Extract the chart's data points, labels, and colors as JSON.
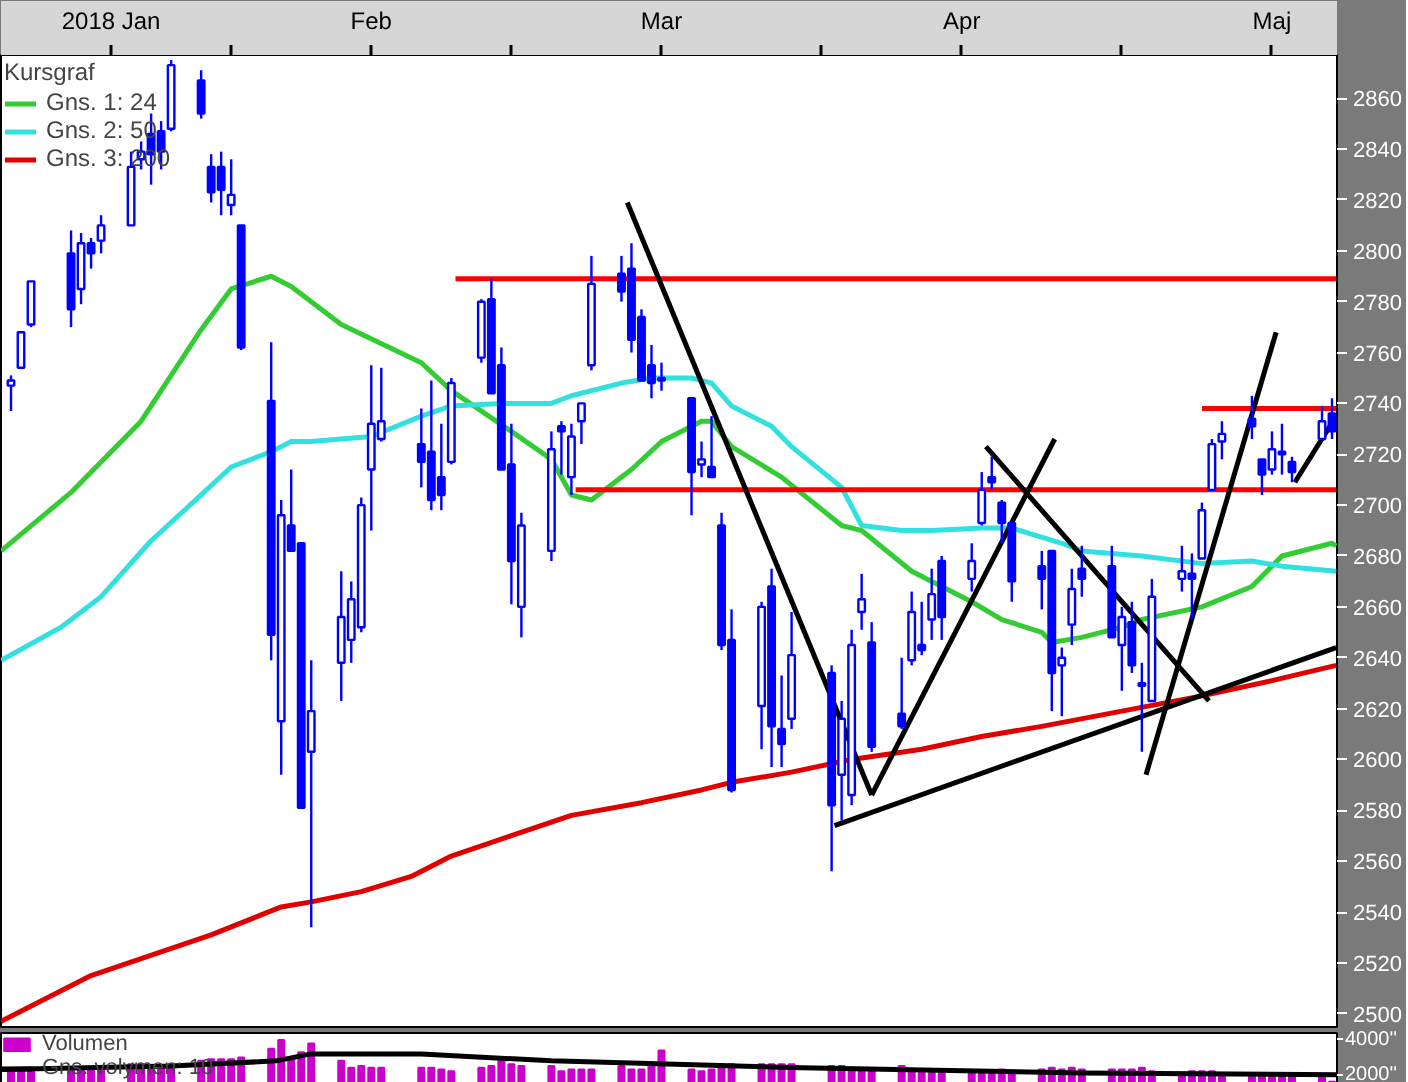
{
  "chart_data": [
    {
      "type": "candlestick",
      "color": "#0000ff",
      "legend": "top left",
      "legend_title": "Kursgraf",
      "x": [
        "2018-01-10",
        "2018-01-11",
        "2018-01-12",
        "2018-01-16",
        "2018-01-17",
        "2018-01-18",
        "2018-01-19",
        "2018-01-22",
        "2018-01-23",
        "2018-01-24",
        "2018-01-25",
        "2018-01-26",
        "2018-01-29",
        "2018-01-30",
        "2018-01-31",
        "2018-02-01",
        "2018-02-02",
        "2018-02-05",
        "2018-02-06",
        "2018-02-07",
        "2018-02-08",
        "2018-02-09",
        "2018-02-12",
        "2018-02-13",
        "2018-02-14",
        "2018-02-15",
        "2018-02-16",
        "2018-02-20",
        "2018-02-21",
        "2018-02-22",
        "2018-02-23",
        "2018-02-26",
        "2018-02-27",
        "2018-02-28",
        "2018-03-01",
        "2018-03-02",
        "2018-03-05",
        "2018-03-06",
        "2018-03-07",
        "2018-03-08",
        "2018-03-09",
        "2018-03-12",
        "2018-03-13",
        "2018-03-14",
        "2018-03-15",
        "2018-03-16",
        "2018-03-19",
        "2018-03-20",
        "2018-03-21",
        "2018-03-22",
        "2018-03-23",
        "2018-03-26",
        "2018-03-27",
        "2018-03-28",
        "2018-03-29",
        "2018-04-02",
        "2018-04-03",
        "2018-04-04",
        "2018-04-05",
        "2018-04-06",
        "2018-04-09",
        "2018-04-10",
        "2018-04-11",
        "2018-04-12",
        "2018-04-13",
        "2018-04-16",
        "2018-04-17",
        "2018-04-18",
        "2018-04-19",
        "2018-04-20",
        "2018-04-23",
        "2018-04-24",
        "2018-04-25",
        "2018-04-26",
        "2018-04-27",
        "2018-04-30",
        "2018-05-01",
        "2018-05-02",
        "2018-05-03",
        "2018-05-04",
        "2018-05-07",
        "2018-05-08",
        "2018-05-09",
        "2018-05-10",
        "2018-05-11",
        "2018-05-14",
        "2018-05-15",
        "2018-05-16",
        "2018-05-17",
        "2018-05-18",
        "2018-05-21",
        "2018-05-22"
      ],
      "ohlc": [
        [
          2747,
          2751,
          2737,
          2749
        ],
        [
          2754,
          2768,
          2754,
          2768
        ],
        [
          2771,
          2788,
          2770,
          2788
        ],
        [
          2799,
          2808,
          2770,
          2777
        ],
        [
          2785,
          2807,
          2779,
          2803
        ],
        [
          2803,
          2805,
          2793,
          2799
        ],
        [
          2804,
          2814,
          2799,
          2810
        ],
        [
          2810,
          2839,
          2810,
          2833
        ],
        [
          2836,
          2843,
          2832,
          2839
        ],
        [
          2846,
          2854,
          2826,
          2838
        ],
        [
          2847,
          2851,
          2832,
          2839
        ],
        [
          2848,
          2875,
          2847,
          2873
        ],
        [
          2867,
          2871,
          2852,
          2854
        ],
        [
          2833,
          2838,
          2819,
          2823
        ],
        [
          2833,
          2839,
          2814,
          2824
        ],
        [
          2818,
          2836,
          2814,
          2822
        ],
        [
          2810,
          2810,
          2761,
          2762
        ],
        [
          2741,
          2764,
          2639,
          2649
        ],
        [
          2615,
          2702,
          2594,
          2696
        ],
        [
          2692,
          2714,
          2682,
          2682
        ],
        [
          2685,
          2685,
          2581,
          2581
        ],
        [
          2603,
          2639,
          2534,
          2619
        ],
        [
          2638,
          2674,
          2623,
          2656
        ],
        [
          2647,
          2670,
          2638,
          2663
        ],
        [
          2652,
          2703,
          2650,
          2700
        ],
        [
          2714,
          2755,
          2690,
          2732
        ],
        [
          2726,
          2754,
          2725,
          2733
        ],
        [
          2724,
          2738,
          2707,
          2717
        ],
        [
          2721,
          2749,
          2698,
          2702
        ],
        [
          2711,
          2732,
          2698,
          2704
        ],
        [
          2717,
          2750,
          2716,
          2748
        ],
        [
          2758,
          2781,
          2756,
          2780
        ],
        [
          2781,
          2789,
          2744,
          2744
        ],
        [
          2755,
          2762,
          2714,
          2714
        ],
        [
          2716,
          2732,
          2661,
          2678
        ],
        [
          2660,
          2697,
          2648,
          2692
        ],
        [
          2682,
          2729,
          2678,
          2722
        ],
        [
          2731,
          2733,
          2712,
          2729
        ],
        [
          2711,
          2732,
          2704,
          2727
        ],
        [
          2733,
          2740,
          2724,
          2740
        ],
        [
          2755,
          2798,
          2753,
          2787
        ],
        [
          2791,
          2798,
          2780,
          2784
        ],
        [
          2793,
          2803,
          2760,
          2765
        ],
        [
          2774,
          2777,
          2749,
          2749
        ],
        [
          2755,
          2763,
          2742,
          2748
        ],
        [
          2749,
          2756,
          2745,
          2750
        ],
        [
          2742,
          2742,
          2696,
          2713
        ],
        [
          2716,
          2725,
          2711,
          2718
        ],
        [
          2715,
          2735,
          2711,
          2711
        ],
        [
          2692,
          2697,
          2643,
          2645
        ],
        [
          2647,
          2659,
          2587,
          2588
        ],
        [
          2621,
          2662,
          2604,
          2660
        ],
        [
          2668,
          2675,
          2597,
          2613
        ],
        [
          2612,
          2633,
          2597,
          2606
        ],
        [
          2616,
          2658,
          2612,
          2641
        ],
        [
          2634,
          2637,
          2556,
          2582
        ],
        [
          2594,
          2623,
          2576,
          2616
        ],
        [
          2586,
          2651,
          2582,
          2645
        ],
        [
          2658,
          2673,
          2651,
          2663
        ],
        [
          2646,
          2654,
          2603,
          2605
        ],
        [
          2618,
          2640,
          2612,
          2613
        ],
        [
          2639,
          2666,
          2637,
          2658
        ],
        [
          2645,
          2662,
          2641,
          2643
        ],
        [
          2655,
          2675,
          2647,
          2665
        ],
        [
          2678,
          2680,
          2647,
          2656
        ],
        [
          2671,
          2685,
          2666,
          2678
        ],
        [
          2693,
          2713,
          2692,
          2706
        ],
        [
          2711,
          2719,
          2706,
          2709
        ],
        [
          2701,
          2702,
          2685,
          2693
        ],
        [
          2693,
          2693,
          2662,
          2670
        ],
        [
          2676,
          2682,
          2659,
          2671
        ],
        [
          2682,
          2682,
          2619,
          2634
        ],
        [
          2637,
          2644,
          2617,
          2640
        ],
        [
          2653,
          2675,
          2645,
          2667
        ],
        [
          2675,
          2684,
          2664,
          2671
        ],
        [
          2676,
          2684,
          2648,
          2648
        ],
        [
          2645,
          2660,
          2627,
          2656
        ],
        [
          2654,
          2662,
          2634,
          2637
        ],
        [
          2630,
          2638,
          2603,
          2629
        ],
        [
          2623,
          2671,
          2623,
          2664
        ],
        [
          2671,
          2684,
          2666,
          2674
        ],
        [
          2673,
          2681,
          2655,
          2671
        ],
        [
          2679,
          2701,
          2679,
          2698
        ],
        [
          2706,
          2726,
          2706,
          2724
        ],
        [
          2725,
          2733,
          2718,
          2728
        ],
        [
          2734,
          2743,
          2726,
          2731
        ],
        [
          2718,
          2718,
          2704,
          2712
        ],
        [
          2714,
          2729,
          2712,
          2722
        ],
        [
          2720,
          2732,
          2712,
          2721
        ],
        [
          2717,
          2719,
          2709,
          2713
        ],
        [
          2726,
          2739,
          2726,
          2733
        ],
        [
          2736,
          2742,
          2726,
          2729
        ]
      ],
      "series": [
        {
          "name": "Gns. 1: 24",
          "type": "line",
          "color": "#33cc33",
          "x": [
            "2018-01-09",
            "2018-01-16",
            "2018-01-23",
            "2018-01-29",
            "2018-02-01",
            "2018-02-05",
            "2018-02-07",
            "2018-02-12",
            "2018-02-20",
            "2018-02-23",
            "2018-03-01",
            "2018-03-05",
            "2018-03-07",
            "2018-03-09",
            "2018-03-13",
            "2018-03-16",
            "2018-03-20",
            "2018-03-21",
            "2018-03-23",
            "2018-03-28",
            "2018-04-03",
            "2018-04-05",
            "2018-04-10",
            "2018-04-16",
            "2018-04-19",
            "2018-04-23",
            "2018-04-24",
            "2018-04-27",
            "2018-05-01",
            "2018-05-03",
            "2018-05-09",
            "2018-05-14",
            "2018-05-17",
            "2018-05-22",
            "2018-05-22T10:00"
          ],
          "values": [
            2682,
            2705,
            2733,
            2769,
            2785,
            2790,
            2786,
            2771,
            2756,
            2745,
            2729,
            2718,
            2704,
            2702,
            2714,
            2725,
            2733,
            2733,
            2723,
            2711,
            2692,
            2690,
            2674,
            2662,
            2655,
            2650,
            2646,
            2648,
            2652,
            2655,
            2660,
            2668,
            2680,
            2685,
            2684
          ]
        },
        {
          "name": "Gns. 2: 50",
          "type": "line",
          "color": "#33e0e0",
          "x": [
            "2018-01-09",
            "2018-01-15",
            "2018-01-19",
            "2018-01-24",
            "2018-01-29",
            "2018-02-01",
            "2018-02-05",
            "2018-02-07",
            "2018-02-09",
            "2018-02-15",
            "2018-02-20",
            "2018-02-23",
            "2018-02-28",
            "2018-03-05",
            "2018-03-07",
            "2018-03-12",
            "2018-03-15",
            "2018-03-19",
            "2018-03-21",
            "2018-03-23",
            "2018-03-27",
            "2018-03-29",
            "2018-04-03",
            "2018-04-05",
            "2018-04-09",
            "2018-04-12",
            "2018-04-17",
            "2018-04-20",
            "2018-04-25",
            "2018-04-27",
            "2018-05-03",
            "2018-05-09",
            "2018-05-14",
            "2018-05-17",
            "2018-05-22T10:00"
          ],
          "values": [
            2639,
            2652,
            2664,
            2686,
            2704,
            2715,
            2721,
            2725,
            2725,
            2727,
            2735,
            2739,
            2740,
            2740,
            2743,
            2748,
            2750,
            2750,
            2748,
            2739,
            2731,
            2723,
            2707,
            2692,
            2690,
            2690,
            2691,
            2691,
            2685,
            2682,
            2680,
            2677,
            2678,
            2676,
            2674
          ]
        },
        {
          "name": "Gns. 3: 200",
          "type": "line",
          "color": "#e00000",
          "x": [
            "2018-01-09",
            "2018-01-18",
            "2018-01-30",
            "2018-02-06",
            "2018-02-09",
            "2018-02-14",
            "2018-02-19",
            "2018-02-23",
            "2018-03-01",
            "2018-03-07",
            "2018-03-14",
            "2018-03-20",
            "2018-03-23",
            "2018-03-29",
            "2018-04-04",
            "2018-04-11",
            "2018-04-17",
            "2018-04-23",
            "2018-05-01",
            "2018-05-09",
            "2018-05-16",
            "2018-05-22T10:00"
          ],
          "values": [
            2497,
            2515,
            2531,
            2542,
            2544,
            2548,
            2554,
            2562,
            2570,
            2578,
            2583,
            2588,
            2591,
            2595,
            2600,
            2604,
            2609,
            2613,
            2619,
            2625,
            2631,
            2637
          ]
        },
        {
          "type": "line",
          "color": "#ff0000",
          "x": [
            "2018-02-23T10:00",
            "2018-05-22T10:00"
          ],
          "values": [
            2789,
            2789
          ]
        },
        {
          "type": "line",
          "color": "#ff0000",
          "x": [
            "2018-03-07T10:00",
            "2018-05-22T10:00"
          ],
          "values": [
            2706,
            2706
          ]
        },
        {
          "type": "line",
          "color": "#ff0000",
          "x": [
            "2018-05-09",
            "2018-05-22T10:00"
          ],
          "values": [
            2738,
            2738
          ]
        },
        {
          "type": "line",
          "color": "#000000",
          "x": [
            "2018-03-12T14:00",
            "2018-04-06"
          ],
          "values": [
            2819,
            2586
          ]
        },
        {
          "type": "line",
          "color": "#000000",
          "x": [
            "2018-04-06",
            "2018-04-24T07:00"
          ],
          "values": [
            2586,
            2726
          ]
        },
        {
          "type": "line",
          "color": "#000000",
          "x": [
            "2018-04-17T10:00",
            "2018-05-09T17:00"
          ],
          "values": [
            2723,
            2623
          ]
        },
        {
          "type": "line",
          "color": "#000000",
          "x": [
            "2018-04-02T07:00",
            "2018-05-22T10:00"
          ],
          "values": [
            2574,
            2644
          ]
        },
        {
          "type": "line",
          "color": "#000000",
          "x": [
            "2018-05-03T10:00",
            "2018-05-16T10:00"
          ],
          "values": [
            2594,
            2768
          ]
        },
        {
          "type": "line",
          "color": "#000000",
          "x": [
            "2018-05-18T07:00",
            "2018-05-22T10:00"
          ],
          "values": [
            2709,
            2735
          ]
        }
      ],
      "xlim": [
        "2018-01-09",
        "2018-05-22T12:00"
      ],
      "xticks": [
        {
          "value": "2018-01-20",
          "label": "2018 Jan"
        },
        {
          "value": "2018-02-01",
          "label": null
        },
        {
          "value": "2018-02-15",
          "label": "Feb"
        },
        {
          "value": "2018-03-01",
          "label": null
        },
        {
          "value": "2018-03-16",
          "label": "Mar"
        },
        {
          "value": "2018-04-01",
          "label": null
        },
        {
          "value": "2018-04-15",
          "label": "Apr"
        },
        {
          "value": "2018-05-01",
          "label": null
        },
        {
          "value": "2018-05-16",
          "label": "Maj"
        }
      ],
      "ylim": [
        2494,
        2877
      ],
      "yticks": [
        2500,
        2520,
        2540,
        2560,
        2580,
        2600,
        2620,
        2640,
        2660,
        2680,
        2700,
        2720,
        2740,
        2760,
        2780,
        2800,
        2820,
        2840,
        2860
      ]
    },
    {
      "type": "bar",
      "legend": "top left",
      "tick_labels": "y",
      "x": [
        "2018-01-10",
        "2018-01-11",
        "2018-01-12",
        "2018-01-16",
        "2018-01-17",
        "2018-01-18",
        "2018-01-19",
        "2018-01-22",
        "2018-01-23",
        "2018-01-24",
        "2018-01-25",
        "2018-01-26",
        "2018-01-29",
        "2018-01-30",
        "2018-01-31",
        "2018-02-01",
        "2018-02-02",
        "2018-02-05",
        "2018-02-06",
        "2018-02-07",
        "2018-02-08",
        "2018-02-09",
        "2018-02-12",
        "2018-02-13",
        "2018-02-14",
        "2018-02-15",
        "2018-02-16",
        "2018-02-20",
        "2018-02-21",
        "2018-02-22",
        "2018-02-23",
        "2018-02-26",
        "2018-02-27",
        "2018-02-28",
        "2018-03-01",
        "2018-03-02",
        "2018-03-05",
        "2018-03-06",
        "2018-03-07",
        "2018-03-08",
        "2018-03-09",
        "2018-03-12",
        "2018-03-13",
        "2018-03-14",
        "2018-03-15",
        "2018-03-16",
        "2018-03-19",
        "2018-03-20",
        "2018-03-21",
        "2018-03-22",
        "2018-03-23",
        "2018-03-26",
        "2018-03-27",
        "2018-03-28",
        "2018-03-29",
        "2018-04-02",
        "2018-04-03",
        "2018-04-04",
        "2018-04-05",
        "2018-04-06",
        "2018-04-09",
        "2018-04-10",
        "2018-04-11",
        "2018-04-12",
        "2018-04-13",
        "2018-04-16",
        "2018-04-17",
        "2018-04-18",
        "2018-04-19",
        "2018-04-20",
        "2018-04-23",
        "2018-04-24",
        "2018-04-25",
        "2018-04-26",
        "2018-04-27",
        "2018-04-30",
        "2018-05-01",
        "2018-05-02",
        "2018-05-03",
        "2018-05-04",
        "2018-05-07",
        "2018-05-08",
        "2018-05-09",
        "2018-05-10",
        "2018-05-11",
        "2018-05-14",
        "2018-05-15",
        "2018-05-16",
        "2018-05-17",
        "2018-05-18",
        "2018-05-21",
        "2018-05-22"
      ],
      "series": [
        {
          "name": "Volumen",
          "color": "#cc00cc",
          "values": [
            2200,
            2300,
            2400,
            2200,
            2300,
            2300,
            2300,
            2600,
            2600,
            2400,
            2400,
            2600,
            2800,
            2900,
            2900,
            2900,
            3000,
            3500,
            4000,
            2900,
            3300,
            3800,
            2800,
            2400,
            2500,
            2400,
            2400,
            2400,
            2400,
            2300,
            2200,
            2400,
            2500,
            2800,
            2600,
            2500,
            2500,
            2200,
            2300,
            2300,
            2300,
            2500,
            2300,
            2300,
            2500,
            3400,
            2300,
            2200,
            2300,
            2600,
            2600,
            2600,
            2600,
            2600,
            2600,
            2500,
            2500,
            2300,
            2200,
            2300,
            2500,
            2200,
            2100,
            2100,
            2100,
            2200,
            2100,
            2200,
            2300,
            2200,
            2300,
            2400,
            2300,
            2400,
            2300,
            2300,
            2300,
            2300,
            2400,
            2200,
            2100,
            2200,
            2200,
            2200,
            2100,
            2100,
            2000,
            2100,
            2000,
            2000,
            2000,
            1600
          ]
        },
        {
          "name": "Gns. volymen: 10",
          "type": "line",
          "color": "#000000",
          "x": [
            "2018-01-09",
            "2018-01-26",
            "2018-02-05T12:00",
            "2018-02-09",
            "2018-02-20",
            "2018-03-05",
            "2018-03-30",
            "2018-04-27",
            "2018-05-22T10:00"
          ],
          "values": [
            2300,
            2500,
            2800,
            3200,
            3200,
            2800,
            2400,
            2100,
            2000
          ]
        }
      ],
      "xlim": [
        "2018-01-09",
        "2018-05-22T12:00"
      ],
      "ylim": [
        1300,
        4400
      ],
      "yticks": [
        {
          "value": 2000,
          "label": "2000''"
        },
        {
          "value": 4000,
          "label": "4000''"
        }
      ]
    }
  ]
}
